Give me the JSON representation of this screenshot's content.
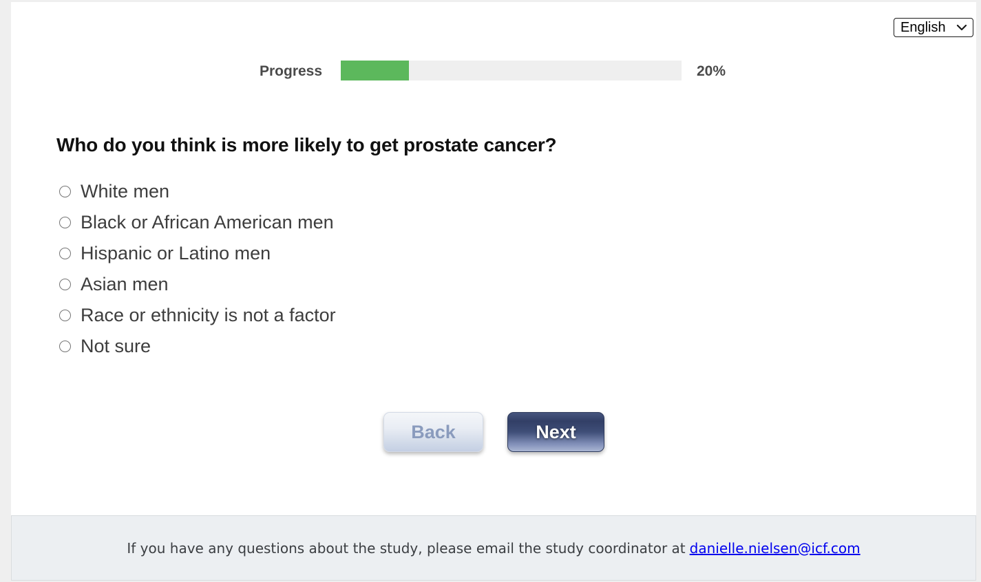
{
  "language_selector": {
    "selected_option": "English"
  },
  "progress": {
    "label": "Progress",
    "percent": 20,
    "percent_label": "20%"
  },
  "question": {
    "text": "Who do you think is more likely to get prostate cancer?",
    "options": [
      "White men",
      "Black or African American men",
      "Hispanic or Latino men",
      "Asian men",
      "Race or ethnicity is not a factor",
      "Not sure"
    ]
  },
  "buttons": {
    "back_label": "Back",
    "next_label": "Next"
  },
  "footer": {
    "message": "If you have any questions about the study, please email the study coordinator at",
    "link_text": "danielle.nielsen@icf.com"
  },
  "colors": {
    "progress_fill": "#5cb85c",
    "progress_track": "#efefef",
    "next_button_accent": "#323f66",
    "back_button_text": "#8a9bbd",
    "link": "#0000ee"
  }
}
